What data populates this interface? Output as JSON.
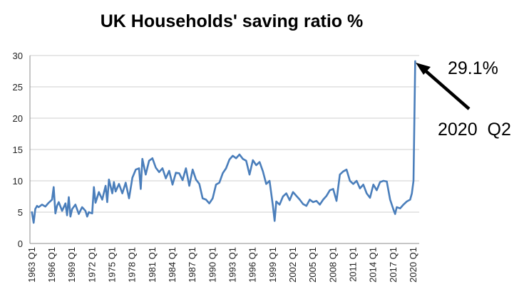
{
  "chart_data": {
    "type": "line",
    "title": "UK Households' saving ratio %",
    "xlabel": "",
    "ylabel": "",
    "ylim": [
      0,
      30
    ],
    "yticks": [
      "0",
      "5",
      "10",
      "15",
      "20",
      "25",
      "30"
    ],
    "grid": true,
    "legend": "none",
    "xticks": [
      "1963 Q1",
      "1966 Q1",
      "1969 Q1",
      "1972 Q1",
      "1975 Q1",
      "1978 Q1",
      "1981 Q1",
      "1984 Q1",
      "1987 Q1",
      "1990 Q1",
      "1993 Q1",
      "1996 Q1",
      "1999 Q1",
      "2002 Q1",
      "2005 Q1",
      "2008 Q1",
      "2011 Q1",
      "2014 Q1",
      "2017 Q1",
      "2020 Q1"
    ],
    "series": [
      {
        "color": "#4a7ebb",
        "x": [
          1963.0,
          1963.25,
          1963.5,
          1963.75,
          1964.0,
          1964.5,
          1965.0,
          1965.5,
          1966.0,
          1966.25,
          1966.5,
          1966.75,
          1967.0,
          1967.5,
          1968.0,
          1968.25,
          1968.5,
          1968.75,
          1969.0,
          1969.5,
          1970.0,
          1970.5,
          1971.0,
          1971.25,
          1971.5,
          1972.0,
          1972.25,
          1972.5,
          1973.0,
          1973.5,
          1974.0,
          1974.25,
          1974.5,
          1975.0,
          1975.25,
          1975.5,
          1976.0,
          1976.5,
          1977.0,
          1977.5,
          1978.0,
          1978.5,
          1979.0,
          1979.25,
          1979.5,
          1980.0,
          1980.5,
          1981.0,
          1981.5,
          1982.0,
          1982.5,
          1983.0,
          1983.5,
          1984.0,
          1984.5,
          1985.0,
          1985.5,
          1986.0,
          1986.5,
          1987.0,
          1987.5,
          1988.0,
          1988.5,
          1989.0,
          1989.5,
          1990.0,
          1990.5,
          1991.0,
          1991.5,
          1992.0,
          1992.5,
          1993.0,
          1993.5,
          1994.0,
          1994.5,
          1995.0,
          1995.5,
          1996.0,
          1996.5,
          1997.0,
          1997.5,
          1998.0,
          1998.5,
          1999.0,
          1999.25,
          1999.5,
          2000.0,
          2000.5,
          2001.0,
          2001.5,
          2002.0,
          2002.5,
          2003.0,
          2003.5,
          2004.0,
          2004.5,
          2005.0,
          2005.5,
          2006.0,
          2006.5,
          2007.0,
          2007.5,
          2008.0,
          2008.5,
          2009.0,
          2009.5,
          2010.0,
          2010.5,
          2011.0,
          2011.5,
          2012.0,
          2012.5,
          2013.0,
          2013.5,
          2014.0,
          2014.5,
          2015.0,
          2015.5,
          2016.0,
          2016.5,
          2017.0,
          2017.25,
          2017.5,
          2018.0,
          2018.5,
          2019.0,
          2019.5,
          2019.75,
          2020.0,
          2020.25
        ],
        "values": [
          5.0,
          3.3,
          5.5,
          6.0,
          5.8,
          6.2,
          5.9,
          6.5,
          7.0,
          9.0,
          4.8,
          6.0,
          6.6,
          5.2,
          6.4,
          4.5,
          7.4,
          4.3,
          5.5,
          6.2,
          4.7,
          5.8,
          5.2,
          4.3,
          5.0,
          4.8,
          9.0,
          6.5,
          8.2,
          7.0,
          9.2,
          6.6,
          10.2,
          8.0,
          9.8,
          8.3,
          9.5,
          8.0,
          9.7,
          7.2,
          10.5,
          11.8,
          12.0,
          8.7,
          13.5,
          11.0,
          13.2,
          13.6,
          12.1,
          11.4,
          12.0,
          10.4,
          11.6,
          9.4,
          11.3,
          11.2,
          10.1,
          12.0,
          9.2,
          11.8,
          10.2,
          9.5,
          7.2,
          7.0,
          6.4,
          7.2,
          9.4,
          9.7,
          11.2,
          12.0,
          13.4,
          14.0,
          13.6,
          14.2,
          13.5,
          13.2,
          11.0,
          13.3,
          12.5,
          13.0,
          11.5,
          9.5,
          10.0,
          6.0,
          3.6,
          6.7,
          6.2,
          7.5,
          8.0,
          6.9,
          8.2,
          7.6,
          7.0,
          6.3,
          6.0,
          7.0,
          6.6,
          6.8,
          6.2,
          7.0,
          7.6,
          8.5,
          8.7,
          6.8,
          11.0,
          11.5,
          11.8,
          10.0,
          9.5,
          10.0,
          8.8,
          9.4,
          8.0,
          7.3,
          9.4,
          8.5,
          9.8,
          10.0,
          9.9,
          7.0,
          5.4,
          4.7,
          5.8,
          5.6,
          6.2,
          6.7,
          7.0,
          8.0,
          10.0,
          29.1
        ]
      }
    ],
    "annotation": {
      "value_label": "29.1%",
      "period_label": "2020  Q2"
    }
  }
}
